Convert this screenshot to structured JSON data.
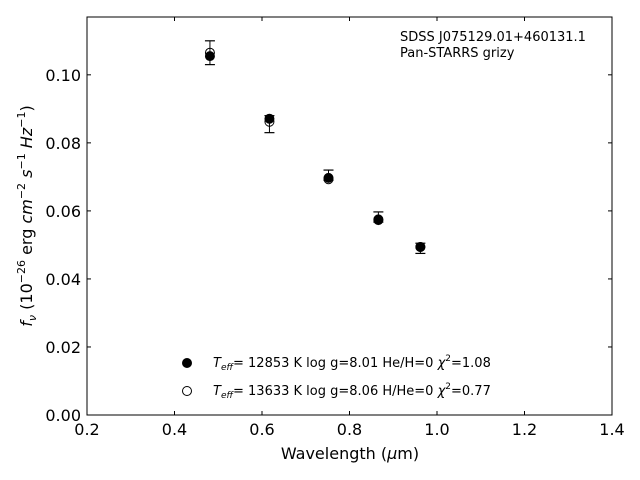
{
  "chart_data": {
    "type": "scatter",
    "annotation_lines": [
      "SDSS J075129.01+460131.1",
      "Pan-STARRS grizy"
    ],
    "xlabel": "Wavelength (μm)",
    "ylabel": "fν (10⁻²⁶ erg cm⁻² s⁻¹ Hz⁻¹)",
    "xlim": [
      0.2,
      1.4
    ],
    "ylim": [
      0.0,
      0.117
    ],
    "xticks": [
      "0.2",
      "0.4",
      "0.6",
      "0.8",
      "1.0",
      "1.2",
      "1.4"
    ],
    "yticks": [
      "0.00",
      "0.02",
      "0.04",
      "0.06",
      "0.08",
      "0.10"
    ],
    "tick_direction": "in",
    "grid": false,
    "legend_position": "lower-center",
    "observed": {
      "x": [
        0.481,
        0.617,
        0.752,
        0.866,
        0.962
      ],
      "y": [
        0.1065,
        0.0855,
        0.0705,
        0.0582,
        0.049
      ],
      "yerr": [
        0.0035,
        0.0025,
        0.0015,
        0.0015,
        0.0015
      ]
    },
    "series": [
      {
        "name": "Teff= 12853 K  log g=8.01  He/H=0  χ²=1.08",
        "marker": "filled-circle",
        "label": {
          "teff_value": "= 12853 K  log g=8.01  He/H=0  ",
          "chi_value": "=1.08"
        },
        "x": [
          0.481,
          0.617,
          0.752,
          0.866,
          0.962
        ],
        "y": [
          0.1055,
          0.0871,
          0.0697,
          0.0575,
          0.0494
        ]
      },
      {
        "name": "Teff= 13633 K  log g=8.06  H/He=0  χ²=0.77",
        "marker": "open-circle",
        "label": {
          "teff_value": "= 13633 K  log g=8.06  H/He=0  ",
          "chi_value": "=0.77"
        },
        "x": [
          0.481,
          0.617,
          0.752,
          0.866,
          0.962
        ],
        "y": [
          0.1065,
          0.0862,
          0.0693,
          0.0573,
          0.0494
        ]
      }
    ]
  }
}
